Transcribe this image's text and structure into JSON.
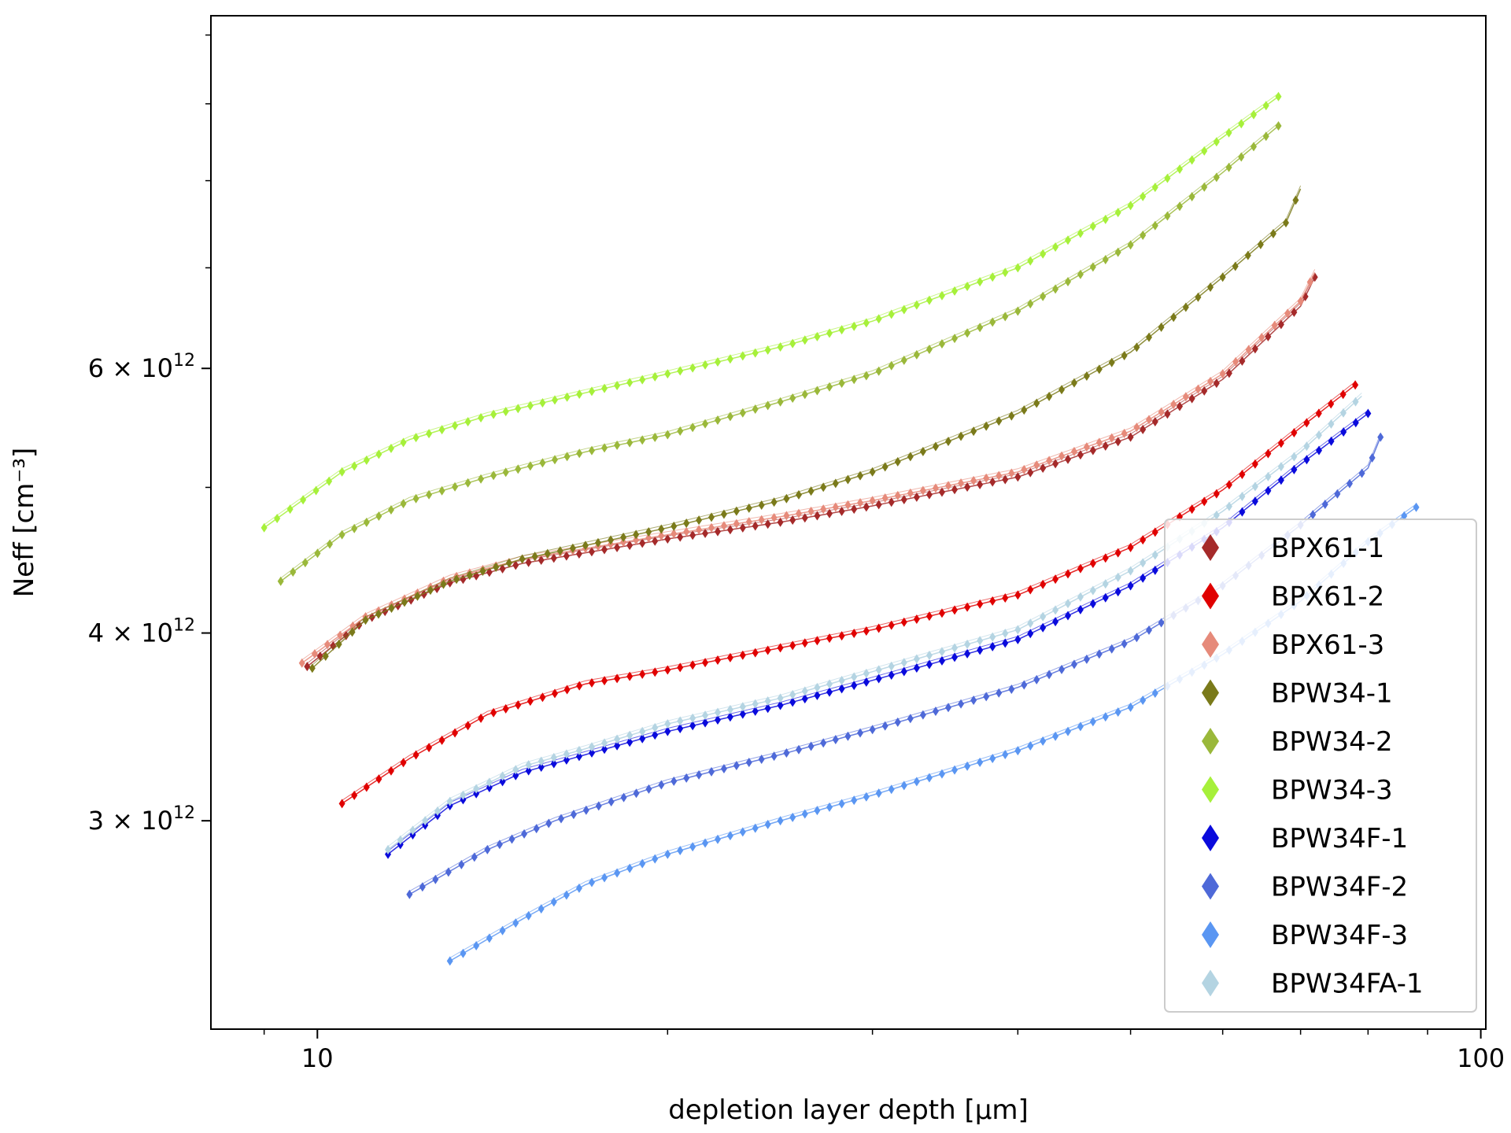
{
  "chart_data": {
    "type": "line",
    "title": "",
    "xlabel": "depletion layer depth [µm]",
    "ylabel": "Neff [cm⁻³]",
    "xscale": "log",
    "yscale": "log",
    "xlim": [
      8.1,
      101
    ],
    "ylim": [
      2180000000000.0,
      10300000000000.0
    ],
    "x_ticks": [
      {
        "value": 10,
        "label": "10"
      },
      {
        "value": 100,
        "label": "100"
      }
    ],
    "x_minor_ticks": [
      9,
      20,
      30,
      40,
      50,
      60,
      70,
      80,
      90
    ],
    "y_ticks": [
      {
        "value": 3000000000000.0,
        "mantissa": "3",
        "exp": "12"
      },
      {
        "value": 4000000000000.0,
        "mantissa": "4",
        "exp": "12"
      },
      {
        "value": 6000000000000.0,
        "mantissa": "6",
        "exp": "12"
      }
    ],
    "y_minor_ticks": [
      5000000000000.0,
      7000000000000.0,
      8000000000000.0,
      9000000000000.0,
      10000000000000.0
    ],
    "grid": false,
    "legend": "right",
    "marker": "diamond",
    "series": [
      {
        "name": "BPX61-1",
        "color": "#a52a2a",
        "x": [
          9.8,
          11,
          13,
          15,
          20,
          25,
          30,
          40,
          50,
          60,
          70,
          72
        ],
        "y": [
          3800000000000.0,
          4080000000000.0,
          4320000000000.0,
          4450000000000.0,
          4620000000000.0,
          4740000000000.0,
          4860000000000.0,
          5080000000000.0,
          5400000000000.0,
          5900000000000.0,
          6600000000000.0,
          6900000000000.0
        ]
      },
      {
        "name": "BPX61-2",
        "color": "#e00000",
        "x": [
          10.5,
          12,
          14,
          17,
          20,
          25,
          30,
          40,
          50,
          60,
          70,
          78
        ],
        "y": [
          3080000000000.0,
          3300000000000.0,
          3530000000000.0,
          3700000000000.0,
          3780000000000.0,
          3910000000000.0,
          4020000000000.0,
          4240000000000.0,
          4560000000000.0,
          4980000000000.0,
          5480000000000.0,
          5850000000000.0
        ]
      },
      {
        "name": "BPX61-3",
        "color": "#e68a7a",
        "x": [
          9.7,
          11,
          13,
          15,
          20,
          25,
          30,
          40,
          50,
          60,
          70,
          72
        ],
        "y": [
          3820000000000.0,
          4100000000000.0,
          4350000000000.0,
          4480000000000.0,
          4650000000000.0,
          4780000000000.0,
          4900000000000.0,
          5120000000000.0,
          5450000000000.0,
          5950000000000.0,
          6650000000000.0,
          6950000000000.0
        ]
      },
      {
        "name": "BPW34-1",
        "color": "#7a7a1a",
        "x": [
          9.9,
          11,
          13,
          15,
          20,
          25,
          30,
          40,
          50,
          60,
          68,
          70
        ],
        "y": [
          3790000000000.0,
          4080000000000.0,
          4330000000000.0,
          4480000000000.0,
          4700000000000.0,
          4900000000000.0,
          5120000000000.0,
          5600000000000.0,
          6150000000000.0,
          6900000000000.0,
          7500000000000.0,
          7900000000000.0
        ]
      },
      {
        "name": "BPW34-2",
        "color": "#9ab83a",
        "x": [
          9.3,
          10.5,
          12,
          14,
          17,
          20,
          25,
          30,
          40,
          50,
          60,
          67
        ],
        "y": [
          4330000000000.0,
          4650000000000.0,
          4900000000000.0,
          5080000000000.0,
          5280000000000.0,
          5420000000000.0,
          5700000000000.0,
          5950000000000.0,
          6550000000000.0,
          7250000000000.0,
          8100000000000.0,
          8700000000000.0
        ]
      },
      {
        "name": "BPW34-3",
        "color": "#a6f03a",
        "x": [
          9.0,
          10.5,
          12,
          14,
          17,
          20,
          25,
          30,
          40,
          50,
          60,
          67
        ],
        "y": [
          4700000000000.0,
          5120000000000.0,
          5380000000000.0,
          5580000000000.0,
          5780000000000.0,
          5950000000000.0,
          6200000000000.0,
          6450000000000.0,
          7000000000000.0,
          7700000000000.0,
          8550000000000.0,
          9100000000000.0
        ]
      },
      {
        "name": "BPW34F-1",
        "color": "#0a0adc",
        "x": [
          11.5,
          13,
          15,
          17,
          20,
          25,
          30,
          40,
          50,
          60,
          70,
          80
        ],
        "y": [
          2850000000000.0,
          3070000000000.0,
          3230000000000.0,
          3320000000000.0,
          3440000000000.0,
          3580000000000.0,
          3720000000000.0,
          3960000000000.0,
          4300000000000.0,
          4700000000000.0,
          5180000000000.0,
          5600000000000.0
        ]
      },
      {
        "name": "BPW34F-2",
        "color": "#4e69d8",
        "x": [
          12,
          14,
          16,
          20,
          25,
          30,
          40,
          50,
          60,
          70,
          80,
          82
        ],
        "y": [
          2680000000000.0,
          2870000000000.0,
          3000000000000.0,
          3180000000000.0,
          3320000000000.0,
          3450000000000.0,
          3680000000000.0,
          3950000000000.0,
          4300000000000.0,
          4720000000000.0,
          5150000000000.0,
          5400000000000.0
        ]
      },
      {
        "name": "BPW34F-3",
        "color": "#5a96f2",
        "x": [
          13,
          15,
          17,
          20,
          25,
          30,
          40,
          50,
          60,
          70,
          80,
          88
        ],
        "y": [
          2420000000000.0,
          2580000000000.0,
          2720000000000.0,
          2850000000000.0,
          3000000000000.0,
          3120000000000.0,
          3340000000000.0,
          3570000000000.0,
          3870000000000.0,
          4200000000000.0,
          4600000000000.0,
          4850000000000.0
        ]
      },
      {
        "name": "BPW34FA-1",
        "color": "#b4d4e2",
        "x": [
          11.5,
          13,
          15,
          17,
          20,
          25,
          30,
          40,
          50,
          60,
          70,
          79
        ],
        "y": [
          2870000000000.0,
          3090000000000.0,
          3260000000000.0,
          3350000000000.0,
          3480000000000.0,
          3620000000000.0,
          3770000000000.0,
          4020000000000.0,
          4400000000000.0,
          4820000000000.0,
          5280000000000.0,
          5750000000000.0
        ]
      }
    ]
  }
}
